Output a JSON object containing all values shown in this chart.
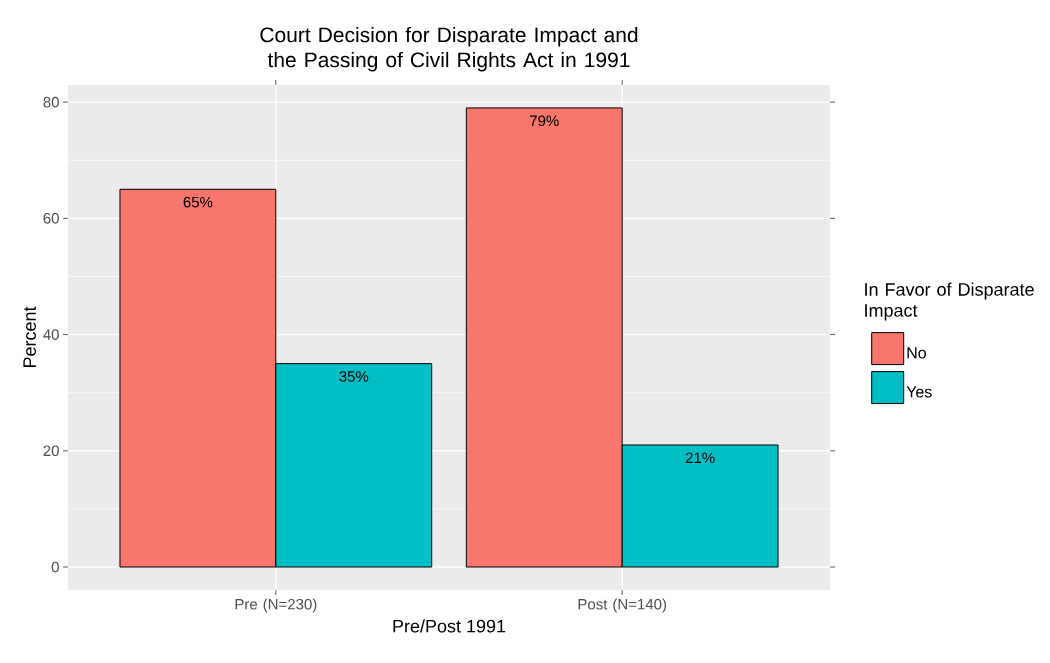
{
  "chart_data": {
    "type": "bar",
    "title": "Court Decision for Disparate Impact and the Passing of Civil Rights Act in 1991",
    "xlabel": "Pre/Post 1991",
    "ylabel": "Percent",
    "legend_title": "In Favor of Disparate Impact",
    "categories": [
      "Pre (N=230)",
      "Post (N=140)"
    ],
    "series": [
      {
        "name": "No",
        "color": "#f8766d",
        "values": [
          65,
          79
        ],
        "value_labels": [
          "65%",
          "79%"
        ]
      },
      {
        "name": "Yes",
        "color": "#00bfc4",
        "values": [
          35,
          21
        ],
        "value_labels": [
          "35%",
          "21%"
        ]
      }
    ],
    "ylim": [
      -3.95,
      82.95
    ],
    "yticks": [
      0,
      20,
      40,
      60,
      80
    ],
    "grid": true,
    "legend": "right"
  }
}
